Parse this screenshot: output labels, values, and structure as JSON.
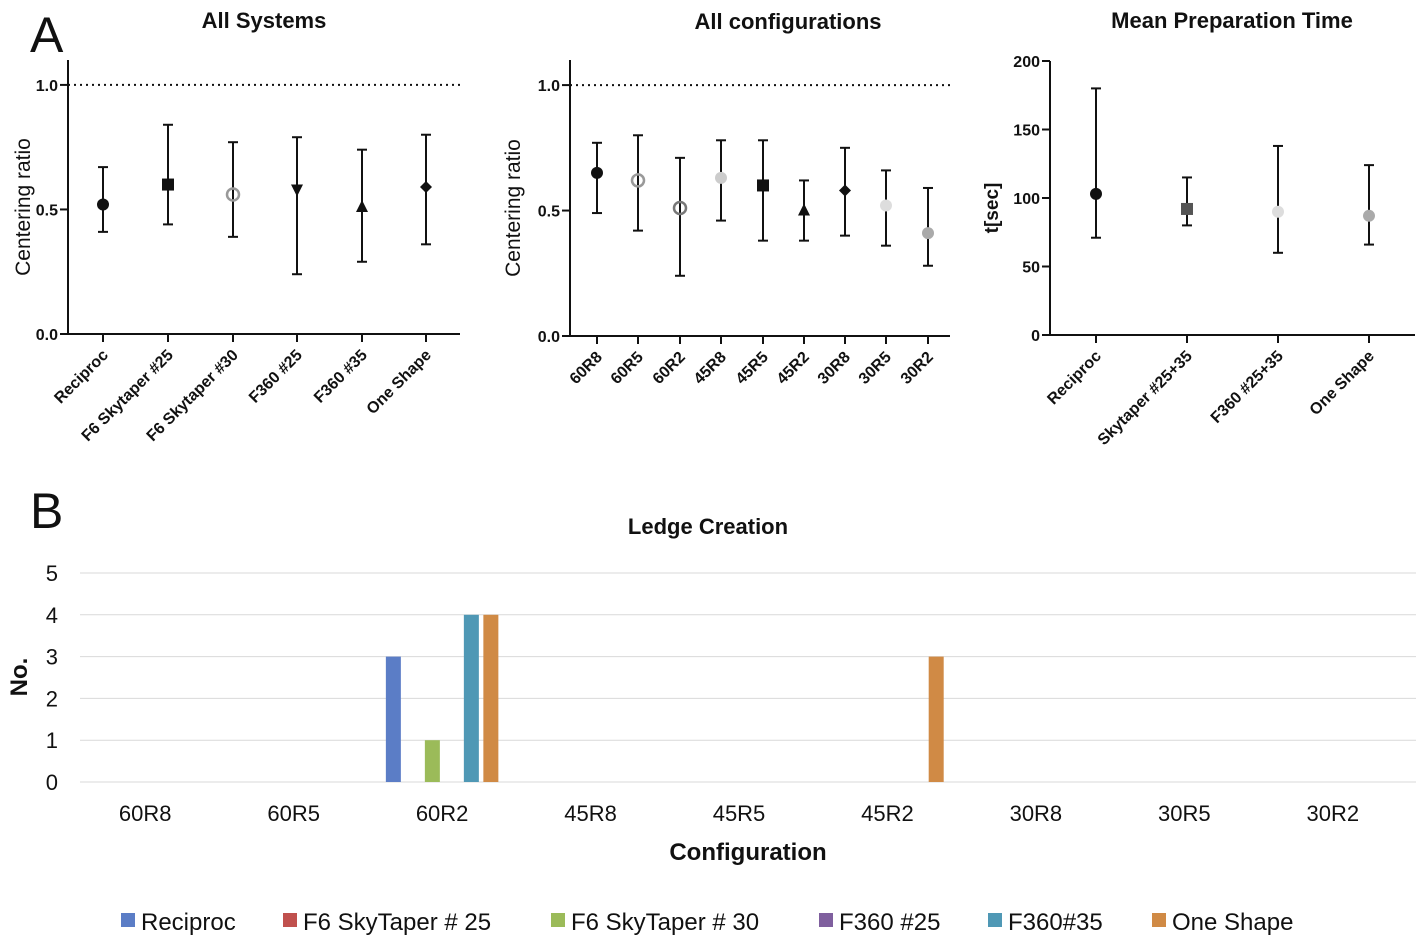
{
  "panel_labels": {
    "a": "A",
    "b": "B"
  },
  "chart_data": [
    {
      "id": "all-systems",
      "type": "scatter",
      "title": "All Systems",
      "xlabel": "",
      "ylabel": "Centering ratio",
      "ylim": [
        0,
        1.1
      ],
      "yticks": [
        0.0,
        0.5,
        1.0
      ],
      "ytick_labels": [
        "0.0",
        "0.5",
        "1.0"
      ],
      "reference_line": 1.0,
      "categories": [
        "Reciproc",
        "F6 Skytaper #25",
        "F6 Skytaper #30",
        "F360 #25",
        "F360 #35",
        "One Shape"
      ],
      "values": [
        0.52,
        0.6,
        0.56,
        0.58,
        0.51,
        0.59
      ],
      "error_low": [
        0.41,
        0.44,
        0.39,
        0.24,
        0.29,
        0.36
      ],
      "error_high": [
        0.67,
        0.84,
        0.77,
        0.79,
        0.74,
        0.8
      ],
      "markers": [
        "circle",
        "square",
        "circle-open",
        "triangle-down",
        "triangle-up",
        "diamond"
      ],
      "marker_colors": [
        "#111111",
        "#111111",
        "#999999",
        "#111111",
        "#111111",
        "#111111"
      ]
    },
    {
      "id": "all-configurations",
      "type": "scatter",
      "title": "All configurations",
      "xlabel": "",
      "ylabel": "Centering ratio",
      "ylim": [
        0,
        1.1
      ],
      "yticks": [
        0.0,
        0.5,
        1.0
      ],
      "ytick_labels": [
        "0.0",
        "0.5",
        "1.0"
      ],
      "reference_line": 1.0,
      "categories": [
        "60R8",
        "60R5",
        "60R2",
        "45R8",
        "45R5",
        "45R2",
        "30R8",
        "30R5",
        "30R2"
      ],
      "values": [
        0.65,
        0.62,
        0.51,
        0.63,
        0.6,
        0.5,
        0.58,
        0.52,
        0.41
      ],
      "error_low": [
        0.49,
        0.42,
        0.24,
        0.46,
        0.38,
        0.38,
        0.4,
        0.36,
        0.28
      ],
      "error_high": [
        0.77,
        0.8,
        0.71,
        0.78,
        0.78,
        0.62,
        0.75,
        0.66,
        0.59
      ],
      "markers": [
        "circle",
        "circle-open",
        "circle-open",
        "circle",
        "square",
        "triangle-up",
        "diamond",
        "circle",
        "circle"
      ],
      "marker_colors": [
        "#111111",
        "#999999",
        "#777777",
        "#cccccc",
        "#111111",
        "#111111",
        "#111111",
        "#dddddd",
        "#aaaaaa"
      ]
    },
    {
      "id": "mean-preparation-time",
      "type": "scatter",
      "title": "Mean Preparation Time",
      "xlabel": "",
      "ylabel": "t[sec]",
      "ylim": [
        0,
        200
      ],
      "yticks": [
        0,
        50,
        100,
        150,
        200
      ],
      "ytick_labels": [
        "0",
        "50",
        "100",
        "150",
        "200"
      ],
      "categories": [
        "Reciproc",
        "Skytaper #25+35",
        "F360 #25+35",
        "One Shape"
      ],
      "values": [
        103,
        92,
        90,
        87
      ],
      "error_low": [
        71,
        80,
        60,
        66
      ],
      "error_high": [
        180,
        115,
        138,
        124
      ],
      "markers": [
        "circle",
        "square",
        "circle",
        "circle"
      ],
      "marker_colors": [
        "#111111",
        "#555555",
        "#dddddd",
        "#aaaaaa"
      ]
    },
    {
      "id": "ledge-creation",
      "type": "bar",
      "title": "Ledge Creation",
      "xlabel": "Configuration",
      "ylabel": "No.",
      "ylim": [
        0,
        5
      ],
      "yticks": [
        0,
        1,
        2,
        3,
        4,
        5
      ],
      "ytick_labels": [
        "0",
        "1",
        "2",
        "3",
        "4",
        "5"
      ],
      "grid": true,
      "legend_position": "bottom",
      "categories": [
        "60R8",
        "60R5",
        "60R2",
        "45R8",
        "45R5",
        "45R2",
        "30R8",
        "30R5",
        "30R2"
      ],
      "series": [
        {
          "name": "Reciproc",
          "color": "#5b7dc6",
          "values": [
            0,
            0,
            3,
            0,
            0,
            0,
            0,
            0,
            0
          ]
        },
        {
          "name": "F6 SkyTaper # 25",
          "color": "#c0504d",
          "values": [
            0,
            0,
            0,
            0,
            0,
            0,
            0,
            0,
            0
          ]
        },
        {
          "name": "F6 SkyTaper # 30",
          "color": "#9bbb59",
          "values": [
            0,
            0,
            1,
            0,
            0,
            0,
            0,
            0,
            0
          ]
        },
        {
          "name": "F360 #25",
          "color": "#7f5f9e",
          "values": [
            0,
            0,
            0,
            0,
            0,
            0,
            0,
            0,
            0
          ]
        },
        {
          "name": "F360#35",
          "color": "#4f98b5",
          "values": [
            0,
            0,
            4,
            0,
            0,
            0,
            0,
            0,
            0
          ]
        },
        {
          "name": "One Shape",
          "color": "#d08a45",
          "values": [
            0,
            0,
            4,
            0,
            0,
            3,
            0,
            0,
            0
          ]
        }
      ]
    }
  ]
}
